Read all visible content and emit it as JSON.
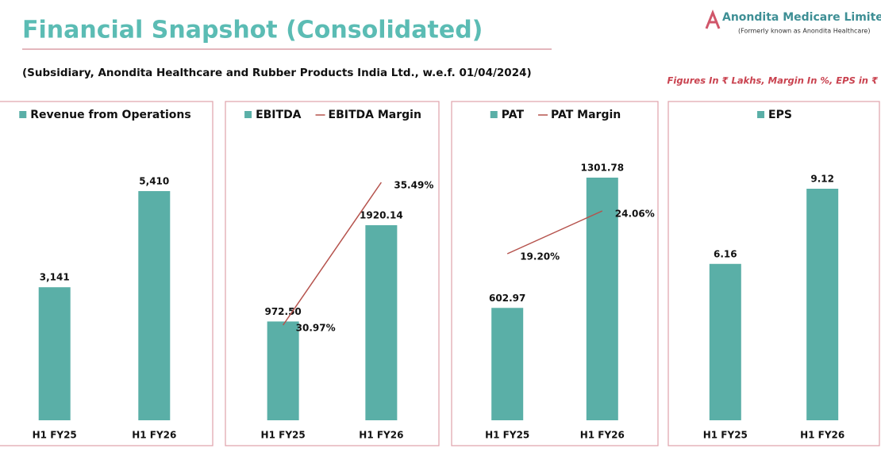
{
  "header": {
    "title": "Financial Snapshot (Consolidated)",
    "subtitle": "(Subsidiary, Anondita Healthcare and Rubber Products India Ltd., w.e.f. 01/04/2024)",
    "logo_name": "Anondita Medicare Limited",
    "logo_note": "(Formerly known as Anondita Healthcare)",
    "units_note": "Figures In ₹ Lakhs, Margin In %, EPS in ₹"
  },
  "chart_data": [
    {
      "type": "bar",
      "categories": [
        "H1 FY25",
        "H1 FY26"
      ],
      "series": [
        {
          "name": "Revenue from Operations",
          "type": "bar",
          "color": "#5aafa7",
          "values": [
            3141,
            5410
          ],
          "value_labels": [
            "3,141",
            "5,410"
          ]
        }
      ]
    },
    {
      "type": "combo",
      "categories": [
        "H1 FY25",
        "H1 FY26"
      ],
      "series": [
        {
          "name": "EBITDA",
          "type": "bar",
          "color": "#5aafa7",
          "values": [
            972.5,
            1920.14
          ],
          "value_labels": [
            "972.50",
            "1920.14"
          ]
        },
        {
          "name": "EBITDA Margin",
          "type": "line",
          "axis": "y2",
          "color": "#b5524c",
          "values": [
            30.97,
            35.49
          ],
          "value_labels": [
            "30.97%",
            "35.49%"
          ]
        }
      ]
    },
    {
      "type": "combo",
      "categories": [
        "H1 FY25",
        "H1 FY26"
      ],
      "series": [
        {
          "name": "PAT",
          "type": "bar",
          "color": "#5aafa7",
          "values": [
            602.97,
            1301.78
          ]
        },
        {
          "name": "PAT Margin",
          "type": "line",
          "axis": "y2",
          "color": "#b5524c",
          "values": [
            19.2,
            24.06
          ],
          "value_labels": [
            "19.20%",
            "24.06%"
          ]
        }
      ]
    },
    {
      "type": "bar",
      "categories": [
        "H1 FY25",
        "H1 FY26"
      ],
      "series": [
        {
          "name": "EPS",
          "type": "bar",
          "color": "#5aafa7",
          "values": [
            6.16,
            9.12
          ]
        }
      ]
    }
  ]
}
